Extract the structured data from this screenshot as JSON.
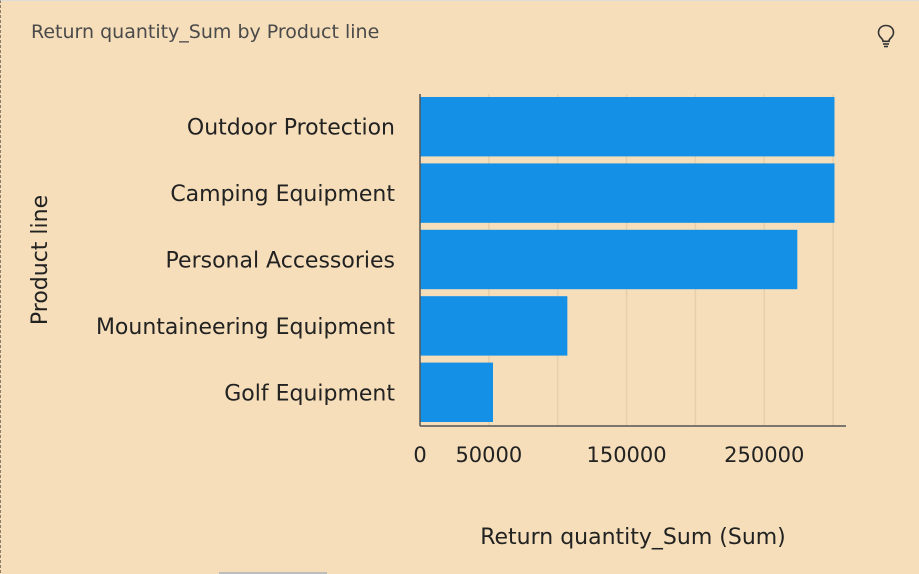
{
  "widget": {
    "title": "Return quantity_Sum by Product line",
    "insight_icon": "lightbulb-icon"
  },
  "colors": {
    "bar": "#1490e6",
    "background": "#f5deb9",
    "grid": "#e6cfaa",
    "axis": "#555555"
  },
  "chart_data": {
    "type": "bar",
    "orientation": "horizontal",
    "title": "Return quantity_Sum by Product line",
    "xlabel": "Return quantity_Sum (Sum)",
    "ylabel": "Product line",
    "categories": [
      "Outdoor Protection",
      "Camping Equipment",
      "Personal Accessories",
      "Mountaineering Equipment",
      "Golf Equipment"
    ],
    "values": [
      301000,
      301000,
      274000,
      107000,
      53000
    ],
    "xlim": [
      0,
      305000
    ],
    "xticks": [
      0,
      50000,
      150000,
      250000
    ],
    "xtick_labels": [
      "0",
      "50000",
      "150000",
      "250000"
    ],
    "grid": true
  }
}
